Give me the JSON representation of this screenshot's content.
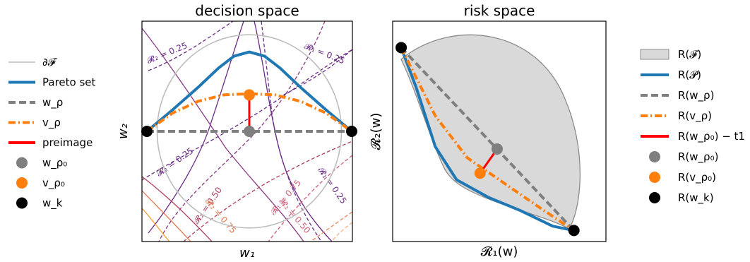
{
  "chart_data": [
    {
      "type": "line",
      "title": "decision space",
      "xlabel": "w₁",
      "ylabel": "w₂",
      "xlim": [
        -1.0,
        1.0
      ],
      "ylim": [
        -1.0,
        1.0
      ],
      "grid": false,
      "series": [
        {
          "name": "∂𝓕",
          "kind": "circle",
          "radius": 0.9,
          "color": "#bdbdbd"
        },
        {
          "name": "Pareto set",
          "color": "#1f77b4",
          "x": [
            -1.0,
            -0.75,
            -0.5,
            -0.3,
            -0.15,
            0.0,
            0.15,
            0.3,
            0.5,
            0.75,
            1.0
          ],
          "y": [
            0.0,
            0.2,
            0.41,
            0.59,
            0.7,
            0.74,
            0.7,
            0.59,
            0.41,
            0.2,
            0.0
          ]
        },
        {
          "name": "w_ρ",
          "color": "#7f7f7f",
          "dash": "dashed",
          "x": [
            -1.0,
            1.0
          ],
          "y": [
            0.0,
            0.0
          ]
        },
        {
          "name": "v_ρ",
          "color": "#ff7f0e",
          "dash": "dashdot",
          "x": [
            -1.0,
            -0.75,
            -0.5,
            -0.25,
            0.0,
            0.25,
            0.5,
            0.75,
            1.0
          ],
          "y": [
            0.0,
            0.17,
            0.28,
            0.34,
            0.35,
            0.34,
            0.28,
            0.17,
            0.0
          ]
        },
        {
          "name": "preimage",
          "color": "#ff0000",
          "x": [
            0.0,
            0.0
          ],
          "y": [
            0.0,
            0.34
          ]
        }
      ],
      "points": [
        {
          "name": "w_ρ₀",
          "x": 0.0,
          "y": 0.0,
          "color": "#7f7f7f"
        },
        {
          "name": "v_ρ₀",
          "x": 0.0,
          "y": 0.34,
          "color": "#ff7f0e"
        },
        {
          "name": "w_k",
          "x": -1.0,
          "y": 0.0,
          "color": "#000000"
        },
        {
          "name": "w_k",
          "x": 1.0,
          "y": 0.0,
          "color": "#000000"
        }
      ],
      "contour_labels": [
        "𝓡₁ = 0.25",
        "𝓡₂ = 0.25",
        "𝓡₂ = 0.25",
        "𝓡₁ = 0.25",
        "𝓡₂ = 0.50",
        "𝓡₁ = 0.75",
        "𝓡₂ = 0.75",
        "𝓡₂ = 0.50"
      ]
    },
    {
      "type": "line",
      "title": "risk space",
      "xlabel": "𝓡₁(w)",
      "ylabel": "𝓡₂(w)",
      "xlim": [
        0.0,
        1.0
      ],
      "ylim": [
        0.0,
        1.0
      ],
      "grid": false,
      "series": [
        {
          "name": "R(𝓕)",
          "kind": "area",
          "color": "#d9d9d9"
        },
        {
          "name": "R(𝓟)",
          "color": "#1f77b4",
          "x": [
            0.04,
            0.11,
            0.2,
            0.3,
            0.45,
            0.6,
            0.75,
            0.85
          ],
          "y": [
            0.88,
            0.7,
            0.43,
            0.28,
            0.2,
            0.14,
            0.07,
            0.05
          ]
        },
        {
          "name": "R(w_ρ)",
          "color": "#7f7f7f",
          "dash": "dashed",
          "x": [
            0.04,
            0.85
          ],
          "y": [
            0.88,
            0.05
          ]
        },
        {
          "name": "R(v_ρ)",
          "color": "#ff7f0e",
          "dash": "dashdot",
          "x": [
            0.04,
            0.2,
            0.35,
            0.5,
            0.68,
            0.85
          ],
          "y": [
            0.88,
            0.57,
            0.38,
            0.28,
            0.16,
            0.05
          ]
        },
        {
          "name": "R(w_ρ₀) − t1",
          "color": "#ff0000",
          "x": [
            0.49,
            0.41
          ],
          "y": [
            0.42,
            0.31
          ]
        }
      ],
      "points": [
        {
          "name": "R(w_ρ₀)",
          "x": 0.49,
          "y": 0.42,
          "color": "#7f7f7f"
        },
        {
          "name": "R(v_ρ₀)",
          "x": 0.41,
          "y": 0.31,
          "color": "#ff7f0e"
        },
        {
          "name": "R(w_k)",
          "x": 0.04,
          "y": 0.88,
          "color": "#000000"
        },
        {
          "name": "R(w_k)",
          "x": 0.85,
          "y": 0.05,
          "color": "#000000"
        }
      ]
    }
  ],
  "legend_left": [
    {
      "label": "∂𝓕",
      "kind": "line",
      "color": "#bdbdbd"
    },
    {
      "label": "Pareto set",
      "kind": "line",
      "color": "#1f77b4"
    },
    {
      "label": "w_ρ",
      "kind": "dashed",
      "color": "#7f7f7f"
    },
    {
      "label": "v_ρ",
      "kind": "dashdot",
      "color": "#ff7f0e"
    },
    {
      "label": "preimage",
      "kind": "line",
      "color": "#ff0000"
    },
    {
      "label": "w_ρ₀",
      "kind": "dot",
      "color": "#7f7f7f"
    },
    {
      "label": "v_ρ₀",
      "kind": "dot",
      "color": "#ff7f0e"
    },
    {
      "label": "w_k",
      "kind": "dot",
      "color": "#000000"
    }
  ],
  "legend_right": [
    {
      "label": "R(𝓕)",
      "kind": "patch",
      "color": "#d9d9d9"
    },
    {
      "label": "R(𝓟)",
      "kind": "line",
      "color": "#1f77b4"
    },
    {
      "label": "R(w_ρ)",
      "kind": "dashed",
      "color": "#7f7f7f"
    },
    {
      "label": "R(v_ρ)",
      "kind": "dashdot",
      "color": "#ff7f0e"
    },
    {
      "label": "R(w_ρ₀) − t1",
      "kind": "line",
      "color": "#ff0000"
    },
    {
      "label": "R(w_ρ₀)",
      "kind": "dot",
      "color": "#7f7f7f"
    },
    {
      "label": "R(v_ρ₀)",
      "kind": "dot",
      "color": "#ff7f0e"
    },
    {
      "label": "R(w_k)",
      "kind": "dot",
      "color": "#000000"
    }
  ]
}
